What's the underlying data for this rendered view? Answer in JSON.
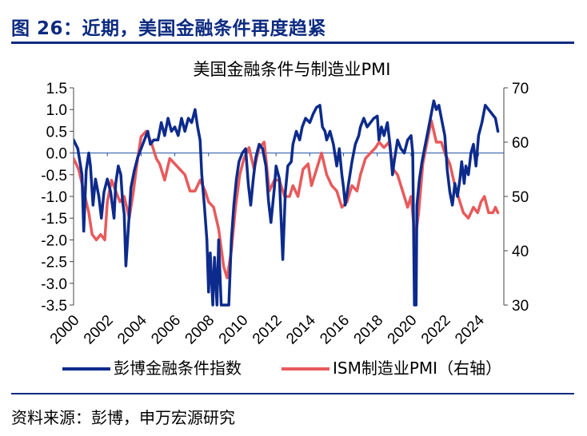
{
  "figure_title": "图 26：近期，美国金融条件再度趋紧",
  "source": "资料来源：彭博，申万宏源研究",
  "colors": {
    "accent": "#0d2b80",
    "bloomberg": "#0d2b8c",
    "ism": "#e85a5c",
    "zero_line": "#1f4fa3"
  },
  "chart_data": {
    "type": "line",
    "title": "美国金融条件与制造业PMI",
    "xlabel": "",
    "ylabel_left": "",
    "ylabel_right": "",
    "xlim": [
      2000,
      2025.5
    ],
    "ylim_left": [
      -3.5,
      1.5
    ],
    "ylim_right": [
      30,
      70
    ],
    "x_tick_labels": [
      "2000",
      "2002",
      "2004",
      "2006",
      "2008",
      "2010",
      "2012",
      "2014",
      "2016",
      "2018",
      "2020",
      "2022",
      "2024"
    ],
    "y_left_tick_labels": [
      "1.5",
      "1.0",
      "0.5",
      "0.0",
      "-0.5",
      "-1.0",
      "-1.5",
      "-2.0",
      "-2.5",
      "-3.0",
      "-3.5"
    ],
    "y_right_tick_labels": [
      "70",
      "60",
      "50",
      "40",
      "30"
    ],
    "legend": [
      "彭博金融条件指数",
      "ISM制造业PMI（右轴）"
    ],
    "series": [
      {
        "name": "彭博金融条件指数",
        "axis": "left",
        "points": [
          [
            2000.0,
            0.3
          ],
          [
            2000.25,
            0.1
          ],
          [
            2000.5,
            -0.5
          ],
          [
            2000.6,
            -1.8
          ],
          [
            2000.75,
            -0.4
          ],
          [
            2000.9,
            0.0
          ],
          [
            2001.0,
            -0.3
          ],
          [
            2001.15,
            -1.2
          ],
          [
            2001.3,
            -0.6
          ],
          [
            2001.5,
            -1.0
          ],
          [
            2001.65,
            -1.5
          ],
          [
            2001.8,
            -0.9
          ],
          [
            2002.0,
            -0.6
          ],
          [
            2002.2,
            -0.9
          ],
          [
            2002.4,
            -1.5
          ],
          [
            2002.5,
            -0.7
          ],
          [
            2002.65,
            -0.3
          ],
          [
            2002.8,
            -0.5
          ],
          [
            2002.9,
            -1.1
          ],
          [
            2003.0,
            -1.4
          ],
          [
            2003.1,
            -2.6
          ],
          [
            2003.25,
            -1.7
          ],
          [
            2003.4,
            -0.8
          ],
          [
            2003.6,
            -0.4
          ],
          [
            2003.8,
            -0.1
          ],
          [
            2004.0,
            0.1
          ],
          [
            2004.2,
            0.3
          ],
          [
            2004.4,
            0.5
          ],
          [
            2004.55,
            0.2
          ],
          [
            2004.75,
            0.3
          ],
          [
            2005.0,
            0.3
          ],
          [
            2005.2,
            0.7
          ],
          [
            2005.4,
            0.4
          ],
          [
            2005.6,
            0.8
          ],
          [
            2005.8,
            0.5
          ],
          [
            2006.0,
            0.6
          ],
          [
            2006.2,
            0.4
          ],
          [
            2006.4,
            0.8
          ],
          [
            2006.6,
            0.5
          ],
          [
            2006.8,
            0.8
          ],
          [
            2007.0,
            0.7
          ],
          [
            2007.2,
            1.0
          ],
          [
            2007.35,
            0.6
          ],
          [
            2007.5,
            0.3
          ],
          [
            2007.6,
            -0.5
          ],
          [
            2007.75,
            -1.2
          ],
          [
            2007.9,
            -2.0
          ],
          [
            2008.0,
            -3.2
          ],
          [
            2008.1,
            -2.3
          ],
          [
            2008.25,
            -3.5
          ],
          [
            2008.35,
            -2.4
          ],
          [
            2008.5,
            -3.5
          ],
          [
            2008.6,
            -2.0
          ],
          [
            2008.75,
            -3.5
          ],
          [
            2008.85,
            -3.5
          ],
          [
            2009.0,
            -3.5
          ],
          [
            2009.2,
            -3.5
          ],
          [
            2009.35,
            -2.0
          ],
          [
            2009.5,
            -1.2
          ],
          [
            2009.65,
            -0.6
          ],
          [
            2009.8,
            -0.2
          ],
          [
            2010.0,
            0.0
          ],
          [
            2010.2,
            0.1
          ],
          [
            2010.35,
            -0.7
          ],
          [
            2010.5,
            -1.2
          ],
          [
            2010.65,
            -0.6
          ],
          [
            2010.8,
            -0.1
          ],
          [
            2011.0,
            0.2
          ],
          [
            2011.2,
            0.1
          ],
          [
            2011.4,
            -0.3
          ],
          [
            2011.55,
            -1.1
          ],
          [
            2011.7,
            -1.6
          ],
          [
            2011.9,
            -0.8
          ],
          [
            2012.0,
            -0.3
          ],
          [
            2012.2,
            -0.6
          ],
          [
            2012.4,
            -2.45
          ],
          [
            2012.55,
            -0.9
          ],
          [
            2012.7,
            -0.3
          ],
          [
            2012.9,
            -0.2
          ],
          [
            2013.0,
            0.2
          ],
          [
            2013.2,
            0.5
          ],
          [
            2013.4,
            0.3
          ],
          [
            2013.55,
            0.6
          ],
          [
            2013.75,
            0.8
          ],
          [
            2014.0,
            0.7
          ],
          [
            2014.2,
            0.9
          ],
          [
            2014.4,
            1.05
          ],
          [
            2014.6,
            1.1
          ],
          [
            2014.75,
            0.6
          ],
          [
            2014.9,
            0.5
          ],
          [
            2015.0,
            0.3
          ],
          [
            2015.2,
            0.5
          ],
          [
            2015.4,
            0.2
          ],
          [
            2015.6,
            -0.3
          ],
          [
            2015.75,
            0.1
          ],
          [
            2015.9,
            -0.5
          ],
          [
            2016.0,
            -0.8
          ],
          [
            2016.1,
            -1.2
          ],
          [
            2016.3,
            -0.7
          ],
          [
            2016.5,
            -0.2
          ],
          [
            2016.7,
            0.2
          ],
          [
            2016.9,
            0.4
          ],
          [
            2017.0,
            0.6
          ],
          [
            2017.2,
            0.8
          ],
          [
            2017.4,
            0.6
          ],
          [
            2017.6,
            0.7
          ],
          [
            2017.8,
            0.8
          ],
          [
            2018.0,
            0.85
          ],
          [
            2018.1,
            0.3
          ],
          [
            2018.25,
            0.6
          ],
          [
            2018.4,
            0.4
          ],
          [
            2018.6,
            0.7
          ],
          [
            2018.75,
            0.2
          ],
          [
            2018.9,
            -0.5
          ],
          [
            2019.0,
            -0.2
          ],
          [
            2019.2,
            0.3
          ],
          [
            2019.4,
            0.1
          ],
          [
            2019.6,
            0.0
          ],
          [
            2019.8,
            0.3
          ],
          [
            2020.0,
            0.4
          ],
          [
            2020.1,
            0.0
          ],
          [
            2020.2,
            -3.5
          ],
          [
            2020.3,
            -3.5
          ],
          [
            2020.35,
            -1.2
          ],
          [
            2020.5,
            -0.6
          ],
          [
            2020.65,
            -0.2
          ],
          [
            2020.8,
            0.1
          ],
          [
            2021.0,
            0.5
          ],
          [
            2021.2,
            0.9
          ],
          [
            2021.35,
            1.2
          ],
          [
            2021.5,
            1.0
          ],
          [
            2021.65,
            1.1
          ],
          [
            2021.8,
            0.8
          ],
          [
            2022.0,
            0.4
          ],
          [
            2022.15,
            -0.4
          ],
          [
            2022.3,
            -0.9
          ],
          [
            2022.45,
            -1.2
          ],
          [
            2022.6,
            -0.7
          ],
          [
            2022.75,
            -1.0
          ],
          [
            2022.9,
            -0.6
          ],
          [
            2023.0,
            -0.2
          ],
          [
            2023.15,
            -0.7
          ],
          [
            2023.25,
            -0.3
          ],
          [
            2023.4,
            -0.5
          ],
          [
            2023.55,
            0.0
          ],
          [
            2023.7,
            0.2
          ],
          [
            2023.85,
            -0.3
          ],
          [
            2024.0,
            0.4
          ],
          [
            2024.2,
            0.7
          ],
          [
            2024.4,
            1.1
          ],
          [
            2024.6,
            1.0
          ],
          [
            2024.8,
            0.9
          ],
          [
            2025.0,
            0.8
          ],
          [
            2025.15,
            0.5
          ]
        ]
      },
      {
        "name": "ISM制造业PMI（右轴）",
        "axis": "right",
        "points": [
          [
            2000.0,
            57
          ],
          [
            2000.3,
            55
          ],
          [
            2000.6,
            51
          ],
          [
            2000.9,
            47
          ],
          [
            2001.1,
            43
          ],
          [
            2001.35,
            42
          ],
          [
            2001.6,
            43
          ],
          [
            2001.85,
            42
          ],
          [
            2002.0,
            49
          ],
          [
            2002.25,
            53
          ],
          [
            2002.5,
            51
          ],
          [
            2002.75,
            49
          ],
          [
            2003.0,
            50
          ],
          [
            2003.3,
            46
          ],
          [
            2003.55,
            51
          ],
          [
            2003.8,
            57
          ],
          [
            2004.0,
            61
          ],
          [
            2004.3,
            62
          ],
          [
            2004.6,
            60
          ],
          [
            2004.9,
            57
          ],
          [
            2005.1,
            56
          ],
          [
            2005.4,
            53
          ],
          [
            2005.7,
            57
          ],
          [
            2006.0,
            56
          ],
          [
            2006.3,
            55
          ],
          [
            2006.6,
            54
          ],
          [
            2006.9,
            51
          ],
          [
            2007.2,
            51
          ],
          [
            2007.5,
            53
          ],
          [
            2007.8,
            51
          ],
          [
            2008.0,
            49
          ],
          [
            2008.3,
            48
          ],
          [
            2008.6,
            44
          ],
          [
            2008.9,
            37
          ],
          [
            2009.1,
            35
          ],
          [
            2009.35,
            40
          ],
          [
            2009.6,
            48
          ],
          [
            2009.85,
            54
          ],
          [
            2010.1,
            57
          ],
          [
            2010.4,
            59
          ],
          [
            2010.7,
            55
          ],
          [
            2011.0,
            59
          ],
          [
            2011.3,
            60
          ],
          [
            2011.6,
            51
          ],
          [
            2011.9,
            53
          ],
          [
            2012.2,
            53
          ],
          [
            2012.5,
            50
          ],
          [
            2012.8,
            50
          ],
          [
            2013.0,
            52
          ],
          [
            2013.3,
            50
          ],
          [
            2013.6,
            55
          ],
          [
            2013.9,
            56
          ],
          [
            2014.1,
            52
          ],
          [
            2014.4,
            55
          ],
          [
            2014.7,
            58
          ],
          [
            2015.0,
            54
          ],
          [
            2015.3,
            52
          ],
          [
            2015.6,
            51
          ],
          [
            2015.9,
            48
          ],
          [
            2016.2,
            49
          ],
          [
            2016.5,
            52
          ],
          [
            2016.8,
            51
          ],
          [
            2017.0,
            54
          ],
          [
            2017.3,
            57
          ],
          [
            2017.6,
            58
          ],
          [
            2017.9,
            59
          ],
          [
            2018.1,
            60
          ],
          [
            2018.4,
            59
          ],
          [
            2018.7,
            60
          ],
          [
            2018.95,
            55
          ],
          [
            2019.2,
            54
          ],
          [
            2019.5,
            51
          ],
          [
            2019.8,
            48
          ],
          [
            2020.0,
            50
          ],
          [
            2020.25,
            42
          ],
          [
            2020.45,
            47
          ],
          [
            2020.7,
            56
          ],
          [
            2020.95,
            60
          ],
          [
            2021.2,
            64
          ],
          [
            2021.5,
            60
          ],
          [
            2021.8,
            60
          ],
          [
            2022.0,
            58
          ],
          [
            2022.3,
            56
          ],
          [
            2022.6,
            52
          ],
          [
            2022.9,
            49
          ],
          [
            2023.1,
            47
          ],
          [
            2023.4,
            46
          ],
          [
            2023.7,
            48
          ],
          [
            2023.95,
            47
          ],
          [
            2024.15,
            49
          ],
          [
            2024.35,
            50
          ],
          [
            2024.6,
            47
          ],
          [
            2024.85,
            47
          ],
          [
            2025.0,
            48
          ],
          [
            2025.15,
            47
          ]
        ]
      }
    ]
  }
}
